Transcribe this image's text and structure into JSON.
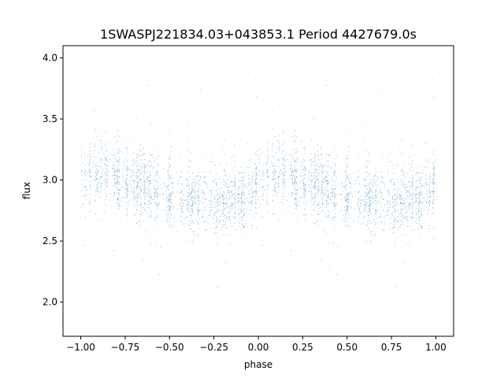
{
  "chart_data": {
    "type": "scatter",
    "title": "1SWASPJ221834.03+043853.1 Period 4427679.0s",
    "xlabel": "phase",
    "ylabel": "flux",
    "xlim": [
      -1.1,
      1.1
    ],
    "ylim": [
      1.72,
      4.1
    ],
    "x_ticks": [
      -1.0,
      -0.75,
      -0.5,
      -0.25,
      0.0,
      0.25,
      0.5,
      0.75,
      1.0
    ],
    "x_tick_labels": [
      "−1.00",
      "−0.75",
      "−0.50",
      "−0.25",
      "0.00",
      "0.25",
      "0.50",
      "0.75",
      "1.00"
    ],
    "y_ticks": [
      2.0,
      2.5,
      3.0,
      3.5,
      4.0
    ],
    "y_tick_labels": [
      "2.0",
      "2.5",
      "3.0",
      "3.5",
      "4.0"
    ],
    "grid": false,
    "legend": "none",
    "point_color": "#1f77b4",
    "series": [
      {
        "description": "folded light curve, mirrored over two cycles (phase -1 to 1)",
        "profile_phase": [
          0.0,
          0.05,
          0.1,
          0.2,
          0.3,
          0.4,
          0.5,
          0.6,
          0.7,
          0.8,
          0.9,
          1.0
        ],
        "profile_flux": [
          2.98,
          3.08,
          3.06,
          3.02,
          2.98,
          2.92,
          2.88,
          2.85,
          2.84,
          2.83,
          2.85,
          2.98
        ],
        "scatter_sigma": 0.14,
        "flux_range": [
          1.83,
          3.98
        ]
      }
    ]
  }
}
